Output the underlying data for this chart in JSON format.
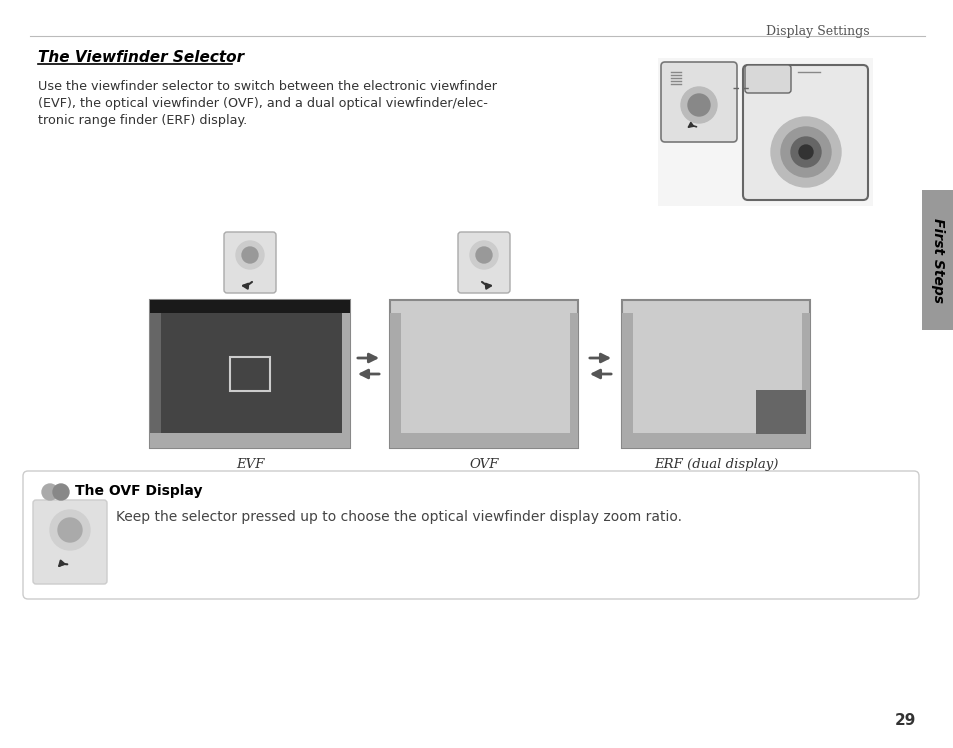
{
  "page_bg": "#ffffff",
  "page_num": "29",
  "header_text": "Display Settings",
  "section_title": "The Viewfinder Selector",
  "body_line1": "Use the viewfinder selector to switch between the electronic viewfinder",
  "body_line2": "(EVF), the optical viewfinder (OVF), and a dual optical viewfinder/elec-",
  "body_line3": "tronic range finder (ERF) display.",
  "sidebar_text": "First Steps",
  "sidebar_bg": "#999999",
  "evf_label": "EVF",
  "ovf_label": "OVF",
  "erf_label": "ERF (dual display)",
  "ovf_box_title": "The OVF Display",
  "ovf_box_text": "Keep the selector pressed up to choose the optical viewfinder display zoom ratio.",
  "evf_screen_bg": "#444444",
  "ovf_screen_bg": "#cccccc",
  "erf_screen_bg": "#cccccc",
  "evf_topbar_bg": "#1a1a1a",
  "screen_border": "#888888",
  "arrow_color": "#555555",
  "divider_color": "#bbbbbb",
  "header_color": "#555555",
  "title_color": "#000000",
  "body_color": "#333333"
}
